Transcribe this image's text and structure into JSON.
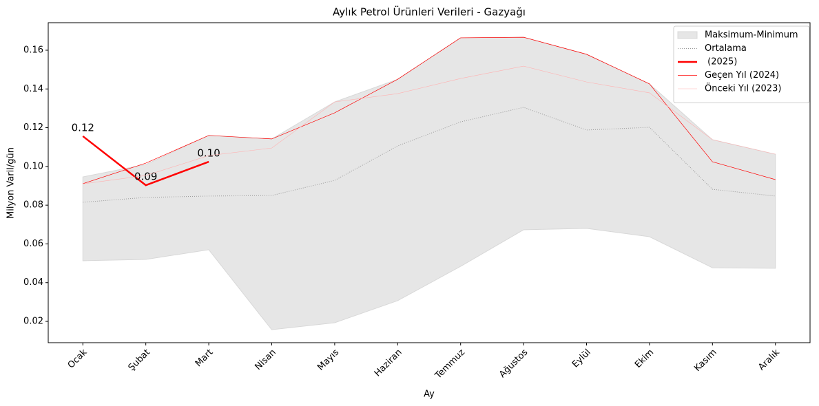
{
  "chart_data": {
    "type": "line",
    "title": "Aylık Petrol Ürünleri Verileri - Gazyağı",
    "xlabel": "Ay",
    "ylabel": "Milyon Varil/gün",
    "categories": [
      "Ocak",
      "Şubat",
      "Mart",
      "Nisan",
      "Mayıs",
      "Haziran",
      "Temmuz",
      "Ağustos",
      "Eylül",
      "Ekim",
      "Kasım",
      "Aralık"
    ],
    "band": {
      "name": "Maksimum-Minimum",
      "color": "#e6e6e6",
      "max": [
        0.0946,
        0.101,
        0.116,
        0.1142,
        0.1333,
        0.145,
        0.1664,
        0.1667,
        0.1579,
        0.1426,
        0.1138,
        0.1063
      ],
      "min": [
        0.0513,
        0.052,
        0.057,
        0.0157,
        0.0193,
        0.0307,
        0.0484,
        0.0673,
        0.068,
        0.0637,
        0.0477,
        0.0474
      ]
    },
    "series": [
      {
        "name": "Ortalama",
        "color": "#999999",
        "style": "dotted",
        "width": 1,
        "values": [
          0.0815,
          0.084,
          0.0847,
          0.085,
          0.0928,
          0.1106,
          0.123,
          0.1305,
          0.1188,
          0.1202,
          0.0882,
          0.0847
        ]
      },
      {
        "name": " (2025)",
        "color": "#ff0000",
        "style": "solid",
        "width": 2.5,
        "values": [
          0.1156,
          0.0903,
          0.1024,
          null,
          null,
          null,
          null,
          null,
          null,
          null,
          null,
          null
        ],
        "value_labels": [
          "0.12",
          "0.09",
          "0.10",
          null,
          null,
          null,
          null,
          null,
          null,
          null,
          null,
          null
        ]
      },
      {
        "name": "Geçen Yıl (2024)",
        "color": "#ff0000",
        "style": "solid",
        "width": 0.7,
        "values": [
          0.0911,
          0.1017,
          0.116,
          0.1142,
          0.1277,
          0.145,
          0.1664,
          0.1667,
          0.1579,
          0.1426,
          0.1024,
          0.0932
        ]
      },
      {
        "name": "Önceki Yıl (2023)",
        "color": "#ffb0b0",
        "style": "solid",
        "width": 0.6,
        "values": [
          0.091,
          0.0953,
          0.1056,
          0.1095,
          0.1333,
          0.1376,
          0.1454,
          0.1518,
          0.1436,
          0.138,
          0.1138,
          0.1063
        ]
      }
    ],
    "ylim": [
      0.009,
      0.1742
    ],
    "yticks": [
      0.02,
      0.04,
      0.06,
      0.08,
      {
        "value": 0.1,
        "label": "0.10"
      },
      0.12,
      0.14,
      0.16
    ],
    "legend": "upper right"
  }
}
